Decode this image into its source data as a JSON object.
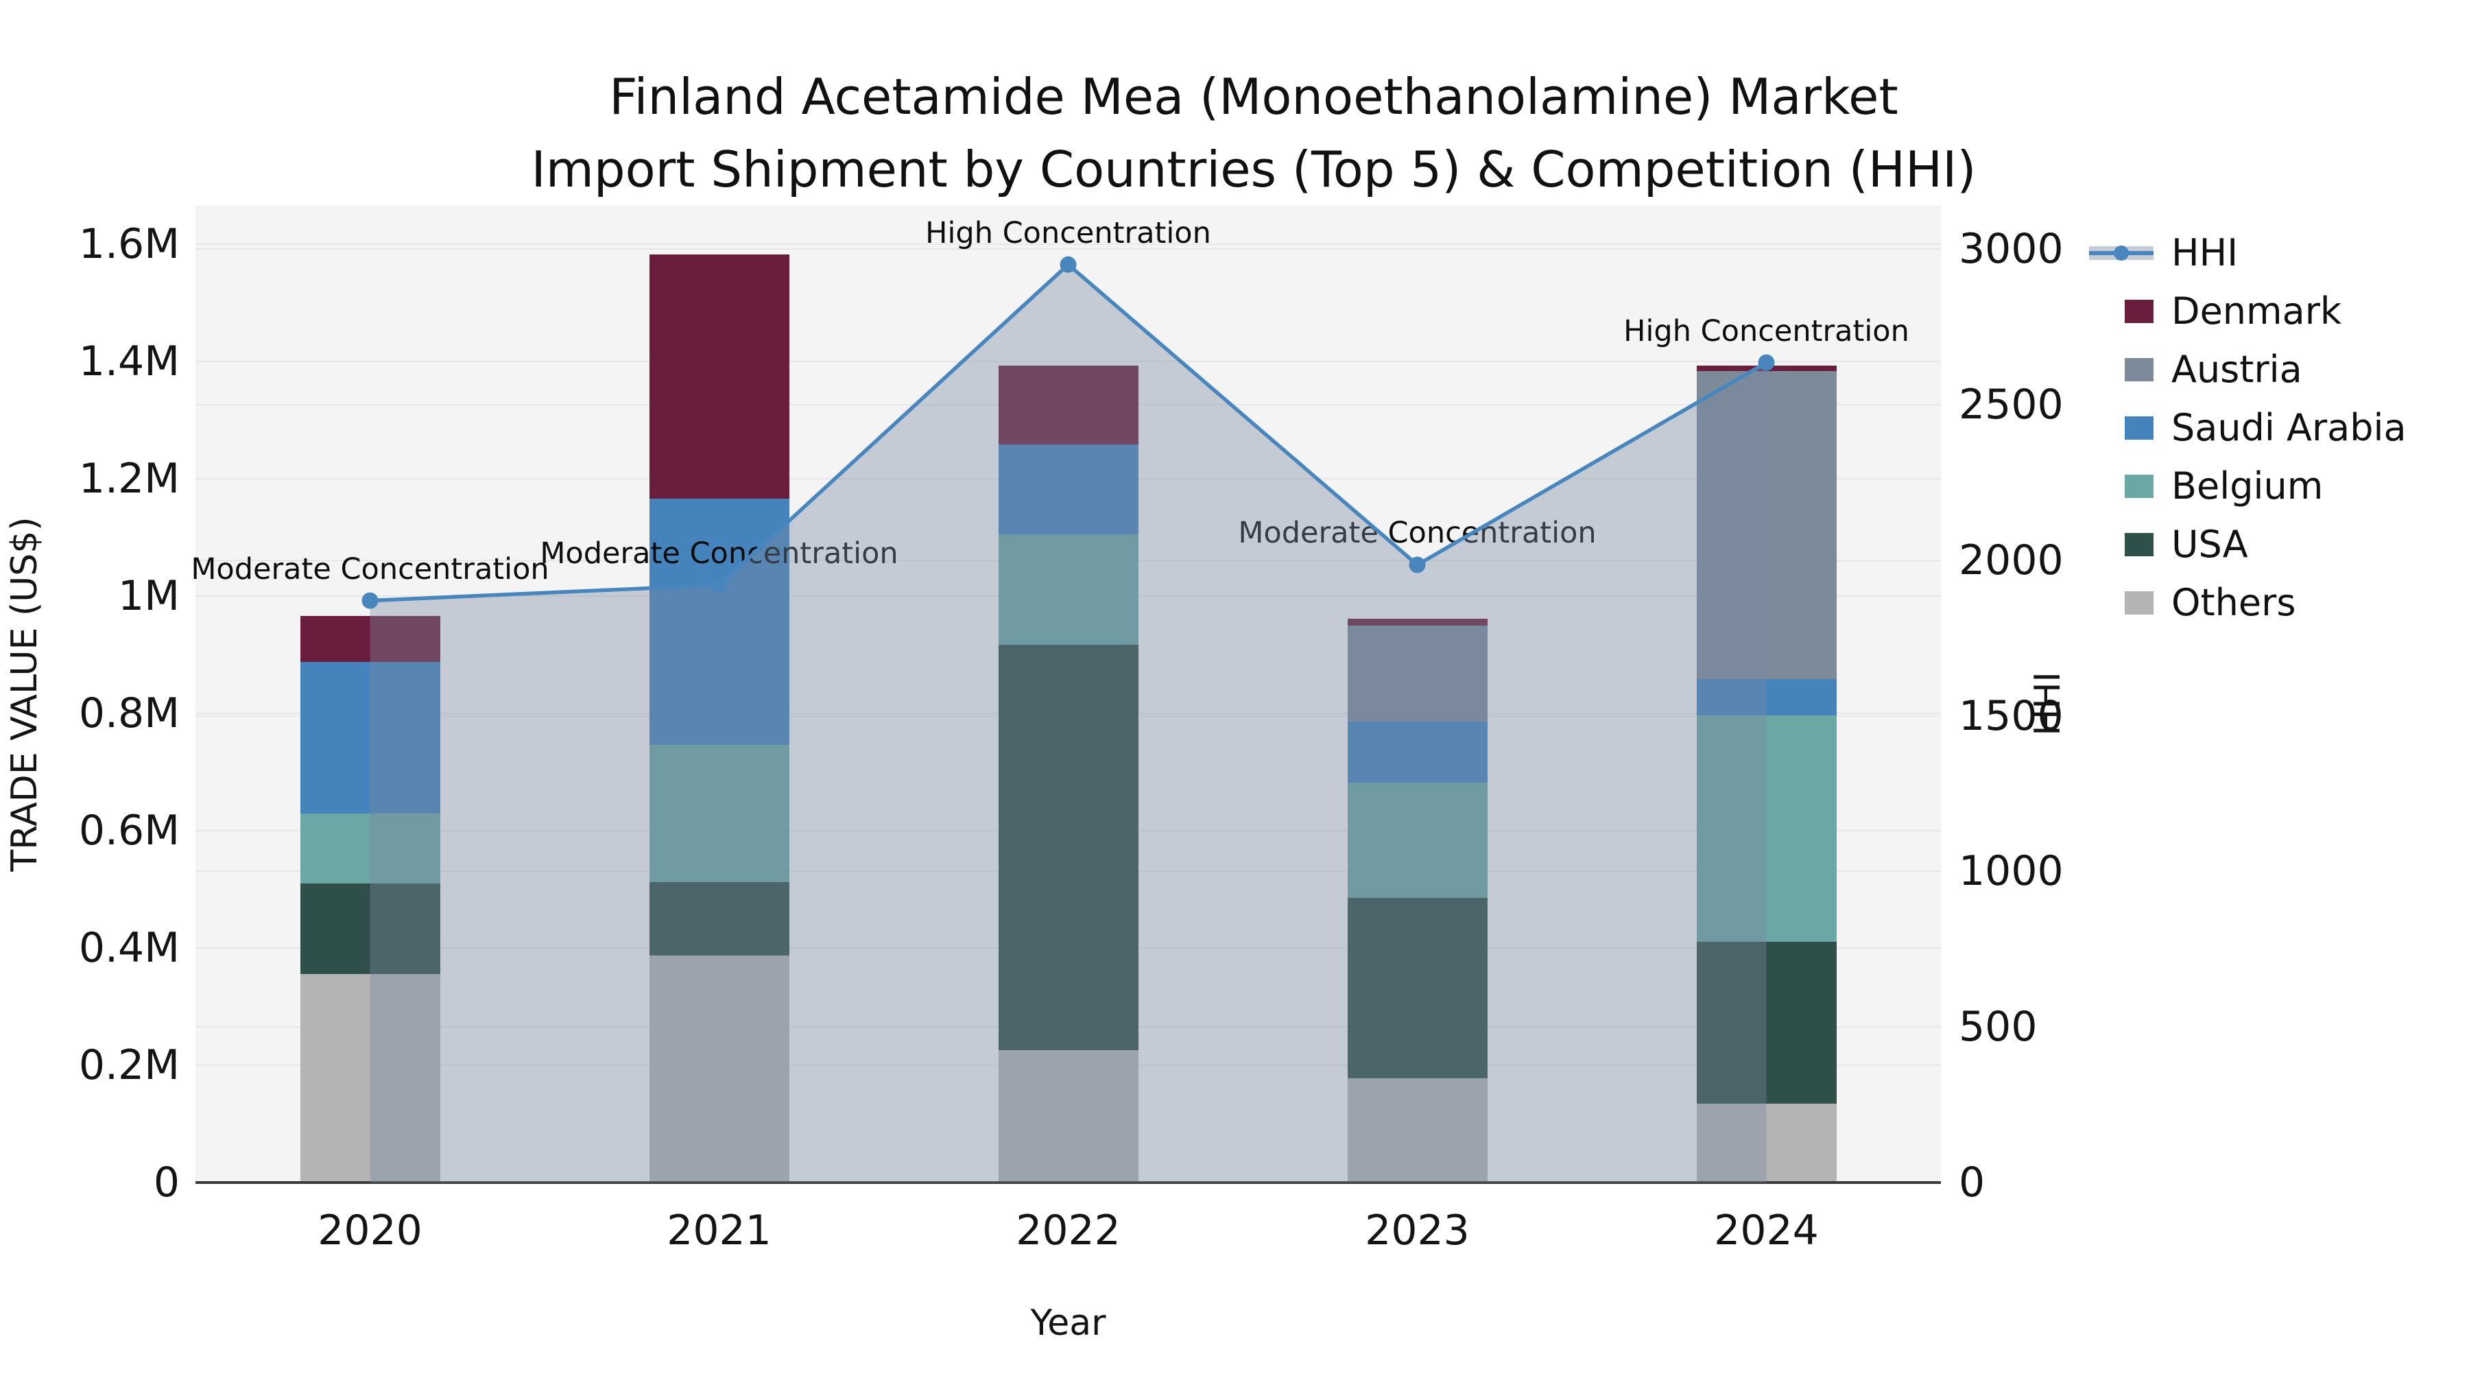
{
  "title": {
    "line1": "Finland Acetamide Mea (Monoethanolamine) Market",
    "line2": "Import Shipment by Countries (Top 5) & Competition (HHI)"
  },
  "axes": {
    "y_left": {
      "label": "TRADE VALUE (US$)",
      "tick_labels": [
        "0",
        "0.2M",
        "0.4M",
        "0.6M",
        "0.8M",
        "1M",
        "1.2M",
        "1.4M",
        "1.6M"
      ],
      "tick_values": [
        0,
        200000,
        400000,
        600000,
        800000,
        1000000,
        1200000,
        1400000,
        1600000
      ],
      "max": 1600000
    },
    "y_right": {
      "label": "HHI",
      "tick_labels": [
        "0",
        "500",
        "1000",
        "1500",
        "2000",
        "2500",
        "3000"
      ],
      "tick_values": [
        0,
        500,
        1000,
        1500,
        2000,
        2500,
        3000
      ],
      "max": 3000
    },
    "x": {
      "label": "Year",
      "tick_labels": [
        "2020",
        "2021",
        "2022",
        "2023",
        "2024"
      ]
    }
  },
  "legend": {
    "items": [
      {
        "label": "HHI",
        "type": "line",
        "color": "#4986BD"
      },
      {
        "label": "Denmark",
        "type": "swatch",
        "color": "#6B1D3D"
      },
      {
        "label": "Austria",
        "type": "swatch",
        "color": "#7C8A99"
      },
      {
        "label": "Saudi Arabia",
        "type": "swatch",
        "color": "#4583BD"
      },
      {
        "label": "Belgium",
        "type": "swatch",
        "color": "#6BA7A4"
      },
      {
        "label": "USA",
        "type": "swatch",
        "color": "#2F4F4A"
      },
      {
        "label": "Others",
        "type": "swatch",
        "color": "#B4B4B4"
      }
    ]
  },
  "chart_data": {
    "type": "combo-stacked-bar-line",
    "categories": [
      "2020",
      "2021",
      "2022",
      "2023",
      "2024"
    ],
    "xlabel": "Year",
    "ylabel_left": "TRADE VALUE (US$)",
    "ylabel_right": "HHI",
    "ylim_left": [
      0,
      1600000
    ],
    "ylim_right": [
      0,
      3000
    ],
    "grid": true,
    "legend_position": "right",
    "series": [
      {
        "name": "Denmark",
        "type": "bar",
        "color": "#6B1D3D",
        "values": [
          78000,
          417000,
          135000,
          11000,
          9000
        ]
      },
      {
        "name": "Austria",
        "type": "bar",
        "color": "#7C8A99",
        "values": [
          0,
          0,
          0,
          164000,
          526000
        ]
      },
      {
        "name": "Saudi Arabia",
        "type": "bar",
        "color": "#4583BD",
        "values": [
          259000,
          420000,
          153000,
          104000,
          61000
        ]
      },
      {
        "name": "Belgium",
        "type": "bar",
        "color": "#6BA7A4",
        "values": [
          119000,
          234000,
          188000,
          197000,
          387000
        ]
      },
      {
        "name": "USA",
        "type": "bar",
        "color": "#2F4F4A",
        "values": [
          155000,
          125000,
          691000,
          307000,
          275000
        ]
      },
      {
        "name": "Others",
        "type": "bar",
        "color": "#B4B4B4",
        "values": [
          355000,
          387000,
          226000,
          178000,
          135000
        ]
      }
    ],
    "bar_totals": [
      966000,
      1583000,
      1393000,
      961000,
      1393000
    ],
    "stack_order_bottom_to_top": [
      "Others",
      "USA",
      "Belgium",
      "Saudi Arabia",
      "Austria",
      "Denmark"
    ],
    "line_series": {
      "name": "HHI",
      "color": "#4986BD",
      "area_fill": "rgba(122,138,160,0.38)",
      "values": [
        1870,
        1920,
        2950,
        1985,
        2635
      ]
    },
    "annotations": [
      {
        "category": "2020",
        "text": "Moderate Concentration"
      },
      {
        "category": "2021",
        "text": "Moderate Concentration"
      },
      {
        "category": "2022",
        "text": "High Concentration"
      },
      {
        "category": "2023",
        "text": "Moderate Concentration"
      },
      {
        "category": "2024",
        "text": "High Concentration"
      }
    ]
  },
  "colors": {
    "plot_bg": "#f4f4f4",
    "figure_bg": "#ffffff",
    "gridline": "#e7e7e7",
    "axis_line": "#3a3a3a",
    "text": "#111111",
    "hhi_line": "#4986BD",
    "hhi_area": "rgba(122,138,160,0.38)",
    "legend_band": "#c5ccd7"
  }
}
